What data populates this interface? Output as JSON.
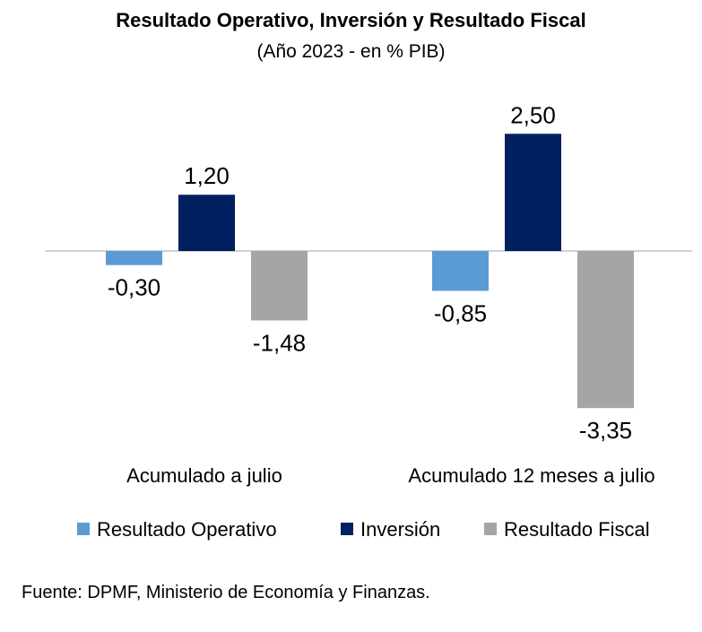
{
  "chart_data": {
    "type": "bar",
    "title": "Resultado Operativo, Inversión y Resultado Fiscal",
    "subtitle": "(Año 2023 - en % PIB)",
    "categories": [
      "Acumulado a julio",
      "Acumulado 12 meses a julio"
    ],
    "series": [
      {
        "name": "Resultado Operativo",
        "values": [
          -0.3,
          -0.85
        ],
        "labels": [
          "-0,30",
          "-0,85"
        ],
        "color": "#5b9bd5"
      },
      {
        "name": "Inversión",
        "values": [
          1.2,
          2.5
        ],
        "labels": [
          "1,20",
          "2,50"
        ],
        "color": "#002060"
      },
      {
        "name": "Resultado Fiscal",
        "values": [
          -1.48,
          -3.35
        ],
        "labels": [
          "-1,48",
          "-3,35"
        ],
        "color": "#a5a5a5"
      }
    ],
    "ylim": [
      -3.35,
      2.5
    ],
    "grid": false,
    "legend": "bottom"
  },
  "source": "Fuente: DPMF, Ministerio de Economía y Finanzas."
}
